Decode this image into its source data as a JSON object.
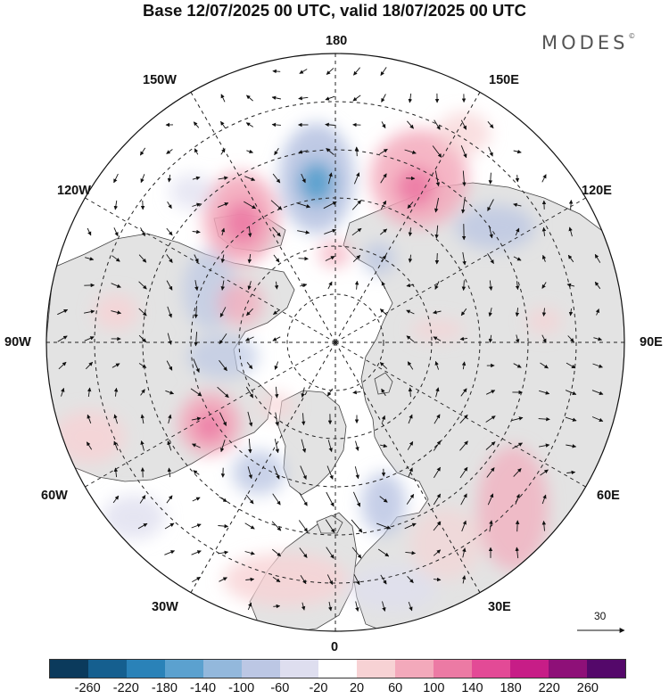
{
  "title": "Base 12/07/2025 00 UTC, valid 18/07/2025 00 UTC",
  "brand": "MODES",
  "brand_mark": "©",
  "longitude_labels": {
    "top": "180",
    "top_left": "150W",
    "top_right": "150E",
    "upper_left": "120W",
    "upper_right": "120E",
    "left": "90W",
    "right": "90E",
    "lower_left": "60W",
    "lower_right": "60E",
    "bottom_left": "30W",
    "bottom_right": "30E",
    "bottom": "0"
  },
  "reference_vector": {
    "value": "30"
  },
  "colorbar": {
    "colors": [
      "#0b3a5c",
      "#155f8f",
      "#2a82b8",
      "#5ba1cf",
      "#93b8dc",
      "#bcc7e4",
      "#dedeef",
      "#ffffff",
      "#f7d2d4",
      "#f3a9bb",
      "#ec7aa4",
      "#e34a96",
      "#c71d87",
      "#8e1078",
      "#54086a"
    ],
    "ticks": [
      "-260",
      "-220",
      "-180",
      "-140",
      "-100",
      "-60",
      "-20",
      "20",
      "60",
      "100",
      "140",
      "180",
      "220",
      "260"
    ]
  },
  "map_style": {
    "land": "#e3e3e3",
    "ocean": "#ffffff",
    "grid": "#222222",
    "arrow": "#111111"
  }
}
